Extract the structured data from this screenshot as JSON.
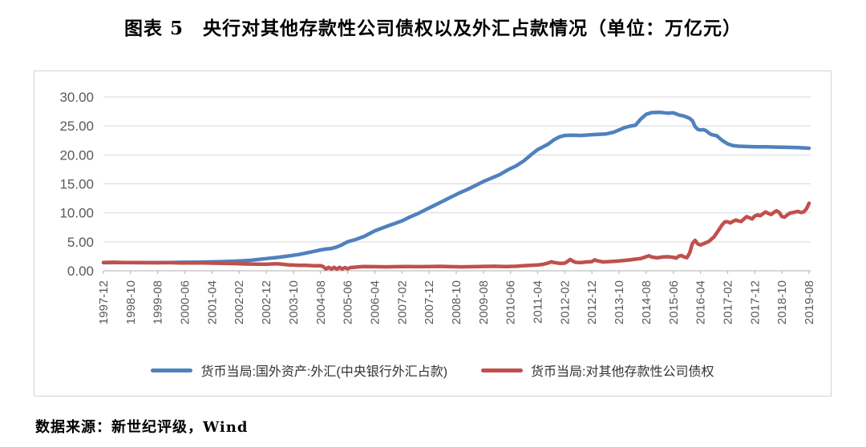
{
  "title": "图表 5　央行对其他存款性公司债权以及外汇占款情况（单位：万亿元）",
  "source": "数据来源：新世纪评级，Wind",
  "colors": {
    "blue_line": "#4f81bd",
    "red_line": "#c0504d",
    "gridline": "#d9d9d9",
    "axis": "#bfbfbf",
    "tick_text": "#595959",
    "frame_border": "#d4d4d4"
  },
  "chart_data": {
    "type": "line",
    "title": "图表 5　央行对其他存款性公司债权以及外汇占款情况（单位：万亿元）",
    "xlabel": "",
    "ylabel": "",
    "x_unit": "months since 1997-12",
    "xlim": [
      0,
      260
    ],
    "ylim": [
      0,
      30
    ],
    "grid": "horizontal",
    "legend_position": "bottom",
    "y_ticks": [
      0,
      5,
      10,
      15,
      20,
      25,
      30
    ],
    "y_tick_labels": [
      "0.00",
      "5.00",
      "10.00",
      "15.00",
      "20.00",
      "25.00",
      "30.00"
    ],
    "x_tick_months": [
      0,
      10,
      20,
      30,
      40,
      50,
      60,
      70,
      80,
      90,
      100,
      110,
      120,
      130,
      140,
      150,
      160,
      170,
      180,
      190,
      200,
      210,
      220,
      230,
      240,
      250,
      260
    ],
    "x_tick_labels": [
      "1997-12",
      "1998-10",
      "1999-08",
      "2000-06",
      "2001-04",
      "2002-02",
      "2002-12",
      "2003-10",
      "2004-08",
      "2005-06",
      "2006-04",
      "2007-02",
      "2007-12",
      "2008-10",
      "2009-08",
      "2010-06",
      "2011-04",
      "2012-02",
      "2012-12",
      "2013-10",
      "2014-08",
      "2015-06",
      "2016-04",
      "2017-02",
      "2017-12",
      "2018-10",
      "2019-08"
    ],
    "series": [
      {
        "name": "货币当局:国外资产:外汇(中央银行外汇占款)",
        "color": "#4f81bd",
        "points": [
          [
            0,
            1.4
          ],
          [
            6,
            1.42
          ],
          [
            12,
            1.4
          ],
          [
            18,
            1.4
          ],
          [
            24,
            1.42
          ],
          [
            30,
            1.46
          ],
          [
            36,
            1.5
          ],
          [
            42,
            1.55
          ],
          [
            48,
            1.65
          ],
          [
            54,
            1.8
          ],
          [
            60,
            2.1
          ],
          [
            64,
            2.3
          ],
          [
            68,
            2.55
          ],
          [
            72,
            2.8
          ],
          [
            76,
            3.2
          ],
          [
            80,
            3.6
          ],
          [
            82,
            3.75
          ],
          [
            84,
            3.85
          ],
          [
            86,
            4.1
          ],
          [
            88,
            4.5
          ],
          [
            90,
            5.0
          ],
          [
            93,
            5.4
          ],
          [
            96,
            5.9
          ],
          [
            100,
            6.9
          ],
          [
            104,
            7.6
          ],
          [
            107,
            8.1
          ],
          [
            110,
            8.6
          ],
          [
            113,
            9.3
          ],
          [
            116,
            9.9
          ],
          [
            119,
            10.6
          ],
          [
            122,
            11.3
          ],
          [
            125,
            12.0
          ],
          [
            128,
            12.7
          ],
          [
            131,
            13.4
          ],
          [
            134,
            14.0
          ],
          [
            137,
            14.7
          ],
          [
            140,
            15.4
          ],
          [
            143,
            16.0
          ],
          [
            146,
            16.6
          ],
          [
            149,
            17.4
          ],
          [
            152,
            18.1
          ],
          [
            155,
            19.0
          ],
          [
            158,
            20.2
          ],
          [
            160,
            20.9
          ],
          [
            162,
            21.4
          ],
          [
            164,
            21.9
          ],
          [
            166,
            22.6
          ],
          [
            168,
            23.1
          ],
          [
            170,
            23.35
          ],
          [
            173,
            23.4
          ],
          [
            176,
            23.35
          ],
          [
            179,
            23.45
          ],
          [
            182,
            23.55
          ],
          [
            185,
            23.6
          ],
          [
            188,
            23.9
          ],
          [
            190,
            24.3
          ],
          [
            192,
            24.7
          ],
          [
            194,
            24.95
          ],
          [
            196,
            25.1
          ],
          [
            198,
            26.2
          ],
          [
            200,
            27.0
          ],
          [
            202,
            27.3
          ],
          [
            205,
            27.35
          ],
          [
            208,
            27.2
          ],
          [
            210,
            27.25
          ],
          [
            212,
            26.9
          ],
          [
            214,
            26.7
          ],
          [
            216,
            26.3
          ],
          [
            217,
            25.9
          ],
          [
            218,
            24.9
          ],
          [
            219,
            24.4
          ],
          [
            220,
            24.3
          ],
          [
            221,
            24.35
          ],
          [
            222,
            24.2
          ],
          [
            223,
            23.8
          ],
          [
            224,
            23.5
          ],
          [
            225,
            23.4
          ],
          [
            226,
            23.3
          ],
          [
            227,
            22.9
          ],
          [
            228,
            22.5
          ],
          [
            230,
            21.9
          ],
          [
            232,
            21.6
          ],
          [
            234,
            21.5
          ],
          [
            236,
            21.45
          ],
          [
            240,
            21.4
          ],
          [
            244,
            21.4
          ],
          [
            248,
            21.35
          ],
          [
            252,
            21.3
          ],
          [
            256,
            21.25
          ],
          [
            260,
            21.15
          ]
        ]
      },
      {
        "name": "货币当局:对其他存款性公司债权",
        "color": "#c0504d",
        "points": [
          [
            0,
            1.44
          ],
          [
            4,
            1.46
          ],
          [
            8,
            1.42
          ],
          [
            12,
            1.43
          ],
          [
            16,
            1.4
          ],
          [
            20,
            1.38
          ],
          [
            24,
            1.42
          ],
          [
            28,
            1.36
          ],
          [
            32,
            1.35
          ],
          [
            36,
            1.36
          ],
          [
            40,
            1.32
          ],
          [
            44,
            1.28
          ],
          [
            48,
            1.25
          ],
          [
            52,
            1.18
          ],
          [
            56,
            1.15
          ],
          [
            60,
            1.12
          ],
          [
            62,
            1.18
          ],
          [
            64,
            1.22
          ],
          [
            66,
            1.12
          ],
          [
            68,
            1.02
          ],
          [
            70,
            0.98
          ],
          [
            72,
            0.92
          ],
          [
            74,
            0.96
          ],
          [
            76,
            0.9
          ],
          [
            78,
            0.86
          ],
          [
            80,
            0.88
          ],
          [
            81,
            0.7
          ],
          [
            82,
            0.3
          ],
          [
            83,
            0.6
          ],
          [
            84,
            0.28
          ],
          [
            85,
            0.6
          ],
          [
            86,
            0.28
          ],
          [
            87,
            0.58
          ],
          [
            88,
            0.3
          ],
          [
            89,
            0.55
          ],
          [
            90,
            0.35
          ],
          [
            91,
            0.55
          ],
          [
            92,
            0.6
          ],
          [
            94,
            0.68
          ],
          [
            96,
            0.72
          ],
          [
            100,
            0.7
          ],
          [
            104,
            0.68
          ],
          [
            108,
            0.7
          ],
          [
            112,
            0.72
          ],
          [
            116,
            0.7
          ],
          [
            120,
            0.73
          ],
          [
            124,
            0.76
          ],
          [
            128,
            0.7
          ],
          [
            132,
            0.68
          ],
          [
            136,
            0.7
          ],
          [
            140,
            0.74
          ],
          [
            144,
            0.78
          ],
          [
            148,
            0.73
          ],
          [
            152,
            0.78
          ],
          [
            155,
            0.88
          ],
          [
            158,
            0.95
          ],
          [
            160,
            1.0
          ],
          [
            162,
            1.1
          ],
          [
            164,
            1.35
          ],
          [
            165,
            1.55
          ],
          [
            166,
            1.42
          ],
          [
            168,
            1.28
          ],
          [
            170,
            1.32
          ],
          [
            171,
            1.62
          ],
          [
            172,
            1.95
          ],
          [
            173,
            1.65
          ],
          [
            174,
            1.45
          ],
          [
            176,
            1.42
          ],
          [
            178,
            1.52
          ],
          [
            180,
            1.58
          ],
          [
            181,
            1.88
          ],
          [
            182,
            1.72
          ],
          [
            184,
            1.52
          ],
          [
            186,
            1.58
          ],
          [
            188,
            1.62
          ],
          [
            190,
            1.68
          ],
          [
            192,
            1.78
          ],
          [
            194,
            1.88
          ],
          [
            196,
            2.0
          ],
          [
            198,
            2.12
          ],
          [
            200,
            2.42
          ],
          [
            201,
            2.58
          ],
          [
            202,
            2.38
          ],
          [
            204,
            2.22
          ],
          [
            206,
            2.38
          ],
          [
            208,
            2.42
          ],
          [
            210,
            2.32
          ],
          [
            211,
            2.18
          ],
          [
            212,
            2.52
          ],
          [
            213,
            2.62
          ],
          [
            214,
            2.38
          ],
          [
            215,
            2.25
          ],
          [
            216,
            3.1
          ],
          [
            217,
            4.7
          ],
          [
            218,
            5.25
          ],
          [
            219,
            4.65
          ],
          [
            220,
            4.45
          ],
          [
            221,
            4.65
          ],
          [
            222,
            4.85
          ],
          [
            223,
            5.05
          ],
          [
            224,
            5.45
          ],
          [
            225,
            5.85
          ],
          [
            226,
            6.55
          ],
          [
            227,
            7.25
          ],
          [
            228,
            7.95
          ],
          [
            229,
            8.45
          ],
          [
            230,
            8.45
          ],
          [
            231,
            8.25
          ],
          [
            232,
            8.55
          ],
          [
            233,
            8.75
          ],
          [
            234,
            8.6
          ],
          [
            235,
            8.5
          ],
          [
            236,
            8.95
          ],
          [
            237,
            9.35
          ],
          [
            238,
            9.15
          ],
          [
            239,
            8.95
          ],
          [
            240,
            9.45
          ],
          [
            241,
            9.65
          ],
          [
            242,
            9.5
          ],
          [
            243,
            9.85
          ],
          [
            244,
            10.15
          ],
          [
            245,
            9.9
          ],
          [
            246,
            9.7
          ],
          [
            247,
            10.05
          ],
          [
            248,
            10.35
          ],
          [
            249,
            10.05
          ],
          [
            250,
            9.35
          ],
          [
            251,
            9.25
          ],
          [
            252,
            9.65
          ],
          [
            253,
            9.95
          ],
          [
            254,
            10.05
          ],
          [
            255,
            10.15
          ],
          [
            256,
            10.25
          ],
          [
            257,
            10.05
          ],
          [
            258,
            10.15
          ],
          [
            259,
            10.65
          ],
          [
            260,
            11.65
          ]
        ]
      }
    ]
  },
  "legend": {
    "items": [
      {
        "label": "货币当局:国外资产:外汇(中央银行外汇占款)",
        "color": "#4f81bd"
      },
      {
        "label": "货币当局:对其他存款性公司债权",
        "color": "#c0504d"
      }
    ]
  }
}
